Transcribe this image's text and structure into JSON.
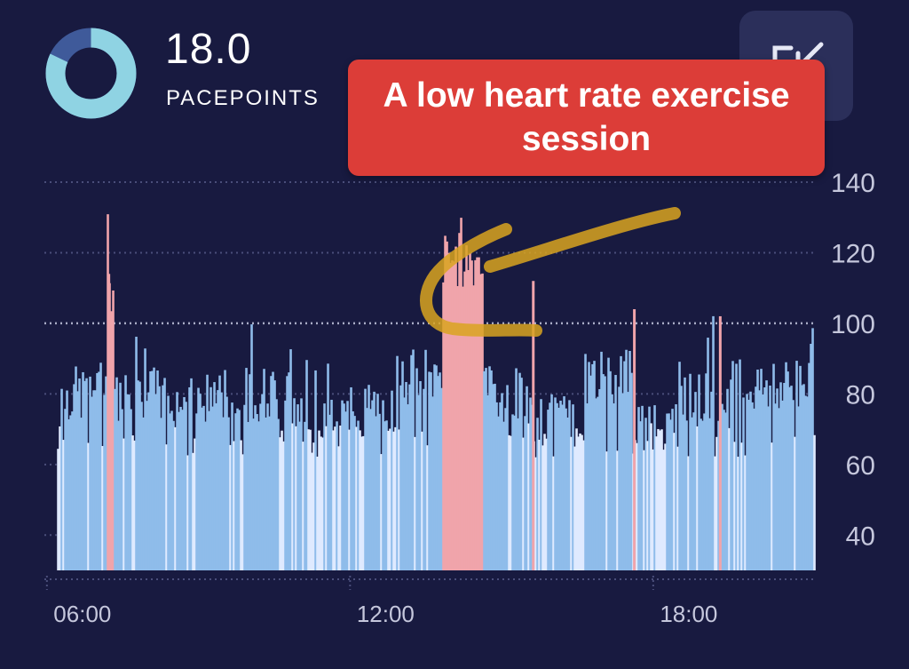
{
  "header": {
    "score_value": "18.0",
    "score_label": "PACEPOINTS",
    "ring_progress": 0.82,
    "ring_color": "#8fd3e3",
    "ring_remainder_color": "#3f5a9a"
  },
  "share_button": {
    "icon": "collapse-arrow-icon"
  },
  "annotation": {
    "text": "A low heart rate exercise session",
    "color": "#dc3d38",
    "arrow_color": "#d9a520"
  },
  "chart_data": {
    "type": "bar",
    "title": "",
    "xlabel": "",
    "ylabel": "",
    "x_ticks": [
      "06:00",
      "12:00",
      "18:00"
    ],
    "y_ticks": [
      40,
      60,
      80,
      100,
      120,
      140
    ],
    "ylim": [
      30,
      140
    ],
    "x_start_hour": 6,
    "x_end_hour": 21.2,
    "reference_line": 100,
    "grid": "dotted-horizontal",
    "colors": {
      "normal": "#8fbcea",
      "rest": "#dfeaff",
      "elevated": "#f0a4ab",
      "grid": "#4a4e7a",
      "reference": "#a9acc6"
    },
    "series": [
      {
        "name": "heart-rate",
        "segments": [
          {
            "start": 6.2,
            "end": 6.7,
            "base": 80,
            "zone": "normal"
          },
          {
            "start": 6.7,
            "end": 7.15,
            "base": 82,
            "zone": "normal"
          },
          {
            "start": 7.15,
            "end": 7.3,
            "base": 110,
            "zone": "elevated"
          },
          {
            "start": 7.3,
            "end": 8.5,
            "base": 80,
            "zone": "normal"
          },
          {
            "start": 8.5,
            "end": 9.2,
            "base": 78,
            "zone": "normal"
          },
          {
            "start": 9.2,
            "end": 10.5,
            "base": 80,
            "zone": "normal"
          },
          {
            "start": 10.5,
            "end": 12.0,
            "base": 74,
            "zone": "normal"
          },
          {
            "start": 12.0,
            "end": 13.0,
            "base": 76,
            "zone": "normal"
          },
          {
            "start": 13.0,
            "end": 13.8,
            "base": 85,
            "zone": "normal"
          },
          {
            "start": 13.8,
            "end": 14.6,
            "base": 118,
            "zone": "elevated"
          },
          {
            "start": 14.6,
            "end": 15.4,
            "base": 80,
            "zone": "normal"
          },
          {
            "start": 15.4,
            "end": 16.6,
            "base": 72,
            "zone": "normal"
          },
          {
            "start": 16.6,
            "end": 17.6,
            "base": 85,
            "zone": "normal"
          },
          {
            "start": 17.6,
            "end": 18.5,
            "base": 72,
            "zone": "normal"
          },
          {
            "start": 18.5,
            "end": 19.5,
            "base": 78,
            "zone": "normal"
          },
          {
            "start": 19.5,
            "end": 21.2,
            "base": 82,
            "zone": "normal"
          }
        ]
      }
    ]
  }
}
